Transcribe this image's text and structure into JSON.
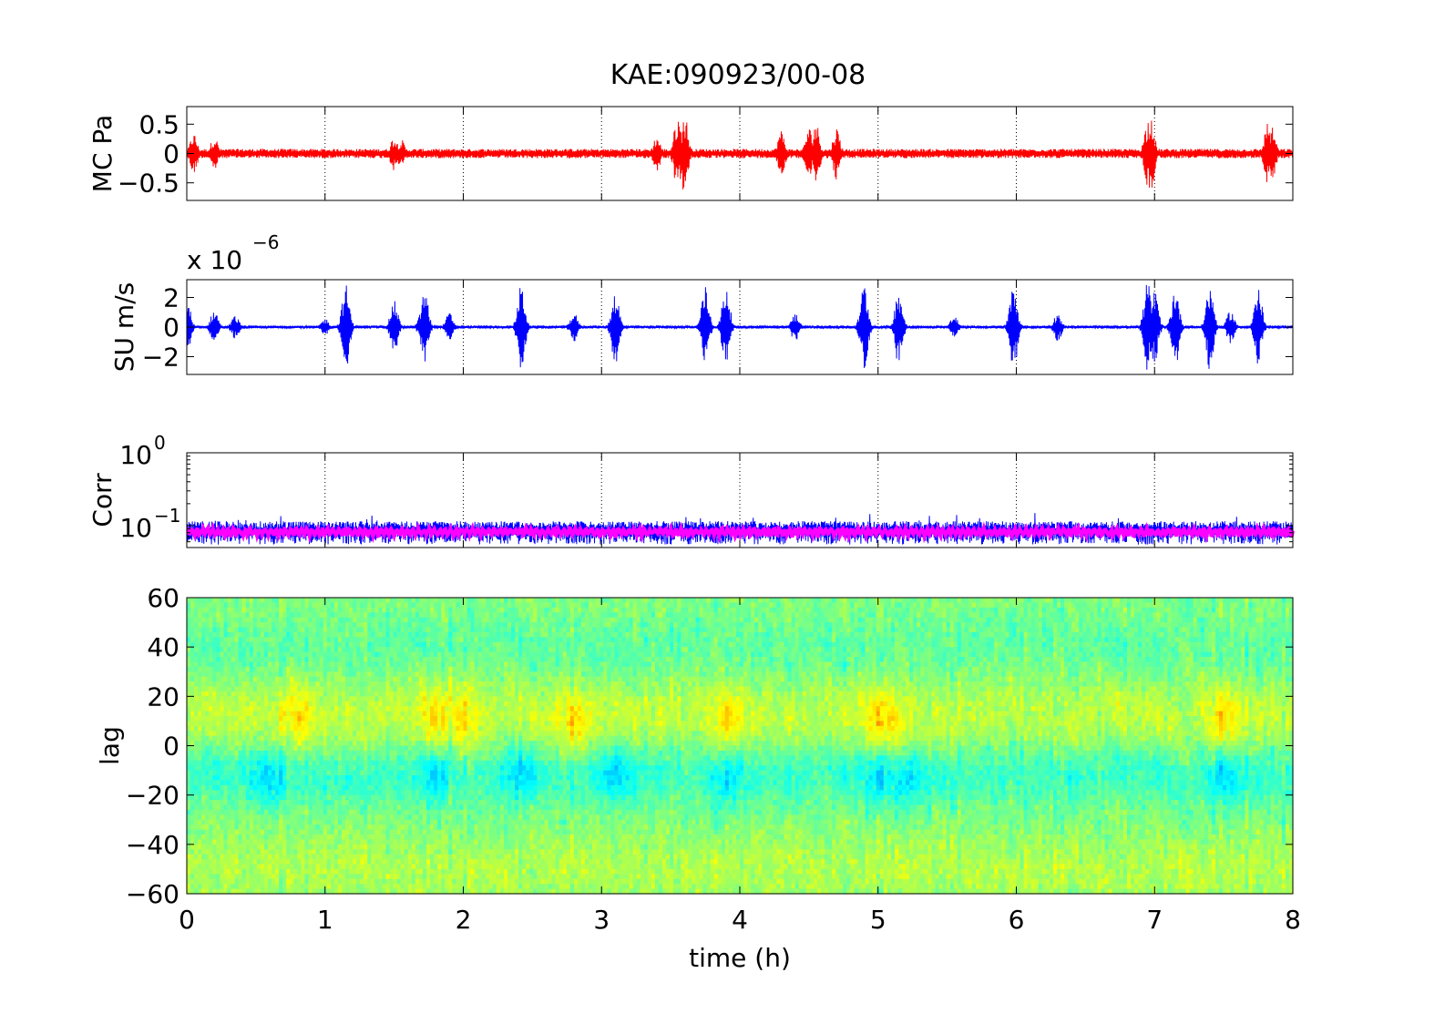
{
  "figure": {
    "title": "KAE:090923/00-08"
  },
  "chart_data": [
    {
      "type": "line",
      "ylabel": "MC Pa",
      "xlim": [
        0,
        8
      ],
      "ylim": [
        -0.8,
        0.8
      ],
      "yticks": [
        "0.5",
        "0",
        "−0.5"
      ],
      "ytick_values": [
        0.5,
        0,
        -0.5
      ],
      "grid": "vertical dotted",
      "series": [
        {
          "color": "#ff0000",
          "baseline_amplitude": 0.08,
          "bursts": [
            [
              0.05,
              0.35
            ],
            [
              0.2,
              0.3
            ],
            [
              1.5,
              0.3
            ],
            [
              1.55,
              0.25
            ],
            [
              3.4,
              0.3
            ],
            [
              3.55,
              0.65
            ],
            [
              3.6,
              0.7
            ],
            [
              4.3,
              0.4
            ],
            [
              4.5,
              0.45
            ],
            [
              4.55,
              0.55
            ],
            [
              4.7,
              0.45
            ],
            [
              6.95,
              0.55
            ],
            [
              6.97,
              0.75
            ],
            [
              7.82,
              0.55
            ],
            [
              7.85,
              0.45
            ]
          ]
        }
      ]
    },
    {
      "type": "line",
      "ylabel": "SU m/s",
      "exponent_label": "x 10",
      "exponent_power": "−6",
      "xlim": [
        0,
        8
      ],
      "ylim": [
        -3.2,
        3.2
      ],
      "yticks": [
        "2",
        "0",
        "−2"
      ],
      "ytick_values": [
        2,
        0,
        -2
      ],
      "grid": "vertical dotted",
      "series": [
        {
          "color": "#0000ff",
          "baseline_amplitude": 0.1,
          "bursts": [
            [
              0.0,
              2.0
            ],
            [
              0.2,
              1.2
            ],
            [
              0.35,
              0.8
            ],
            [
              1.0,
              0.6
            ],
            [
              1.15,
              2.9
            ],
            [
              1.5,
              1.8
            ],
            [
              1.7,
              1.0
            ],
            [
              1.72,
              2.6
            ],
            [
              1.9,
              1.0
            ],
            [
              2.42,
              2.9
            ],
            [
              2.8,
              1.0
            ],
            [
              3.1,
              2.5
            ],
            [
              3.75,
              2.8
            ],
            [
              3.9,
              3.0
            ],
            [
              4.4,
              1.0
            ],
            [
              4.9,
              3.0
            ],
            [
              5.15,
              2.6
            ],
            [
              5.55,
              0.8
            ],
            [
              5.98,
              3.0
            ],
            [
              6.3,
              1.0
            ],
            [
              6.95,
              3.1
            ],
            [
              7.0,
              2.5
            ],
            [
              7.15,
              2.8
            ],
            [
              7.4,
              3.0
            ],
            [
              7.55,
              1.2
            ],
            [
              7.75,
              2.7
            ]
          ]
        }
      ]
    },
    {
      "type": "line",
      "ylabel": "Corr",
      "yscale": "log",
      "xlim": [
        0,
        8
      ],
      "ylim": [
        0.05,
        1
      ],
      "yticks": [
        {
          "base": "10",
          "power": "0"
        },
        {
          "base": "10",
          "power": "−1"
        }
      ],
      "ytick_values": [
        1,
        0.1
      ],
      "grid": "vertical dotted",
      "series": [
        {
          "color": "#0000ff",
          "level": 0.085,
          "spread": 0.03
        },
        {
          "color": "#ff00ff",
          "level": 0.082,
          "spread": 0.008
        }
      ]
    },
    {
      "type": "heatmap",
      "ylabel": "lag",
      "xlabel": "time (h)",
      "xlim": [
        0,
        8
      ],
      "ylim": [
        -60,
        60
      ],
      "yticks": [
        "60",
        "40",
        "20",
        "0",
        "−20",
        "−40",
        "−60"
      ],
      "ytick_values": [
        60,
        40,
        20,
        0,
        -20,
        -40,
        -60
      ],
      "xticks": [
        "0",
        "1",
        "2",
        "3",
        "4",
        "5",
        "6",
        "7",
        "8"
      ],
      "xtick_values": [
        0,
        1,
        2,
        3,
        4,
        5,
        6,
        7,
        8
      ],
      "colormap": "jet",
      "positive_lag_hotspots_h": [
        0.8,
        1.8,
        2.0,
        2.8,
        3.9,
        5.0,
        5.1,
        7.5
      ],
      "negative_lag_coldspots_h": [
        0.6,
        1.8,
        2.4,
        3.1,
        3.9,
        5.0,
        5.2,
        7.5
      ]
    }
  ]
}
